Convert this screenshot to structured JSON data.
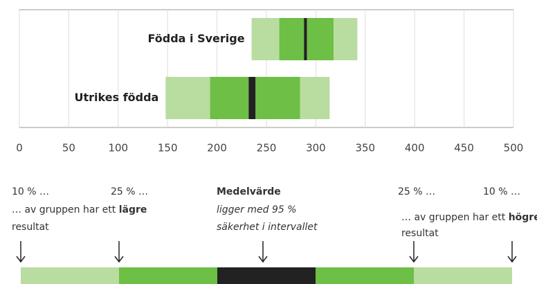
{
  "chart_data": {
    "type": "percentile",
    "xlim": [
      0,
      500
    ],
    "xticks": [
      0,
      50,
      100,
      150,
      200,
      250,
      300,
      350,
      400,
      450,
      500
    ],
    "grid": true,
    "colors": {
      "outer": "#b9dca0",
      "inner": "#6dbf45",
      "mean": "#222222"
    },
    "rows": [
      {
        "name": "Födda i Sverige",
        "values": [
          235,
          263,
          288,
          291,
          318,
          342
        ]
      },
      {
        "name": "Utrikes födda",
        "values": [
          148,
          193,
          232,
          239,
          284,
          314
        ]
      }
    ]
  },
  "legend": {
    "left": {
      "first": "10 % …",
      "second": "25 % …",
      "text": "… av gruppen har ett ",
      "bold": "lägre",
      "tail": "resultat"
    },
    "center": {
      "title": "Medelvärde",
      "line1": "ligger med 95 %",
      "line2": "säkerhet i intervallet"
    },
    "right": {
      "first": "25 % …",
      "second": "10 % …",
      "text": "… av gruppen har ett ",
      "bold": "högre",
      "tail": "resultat"
    }
  }
}
